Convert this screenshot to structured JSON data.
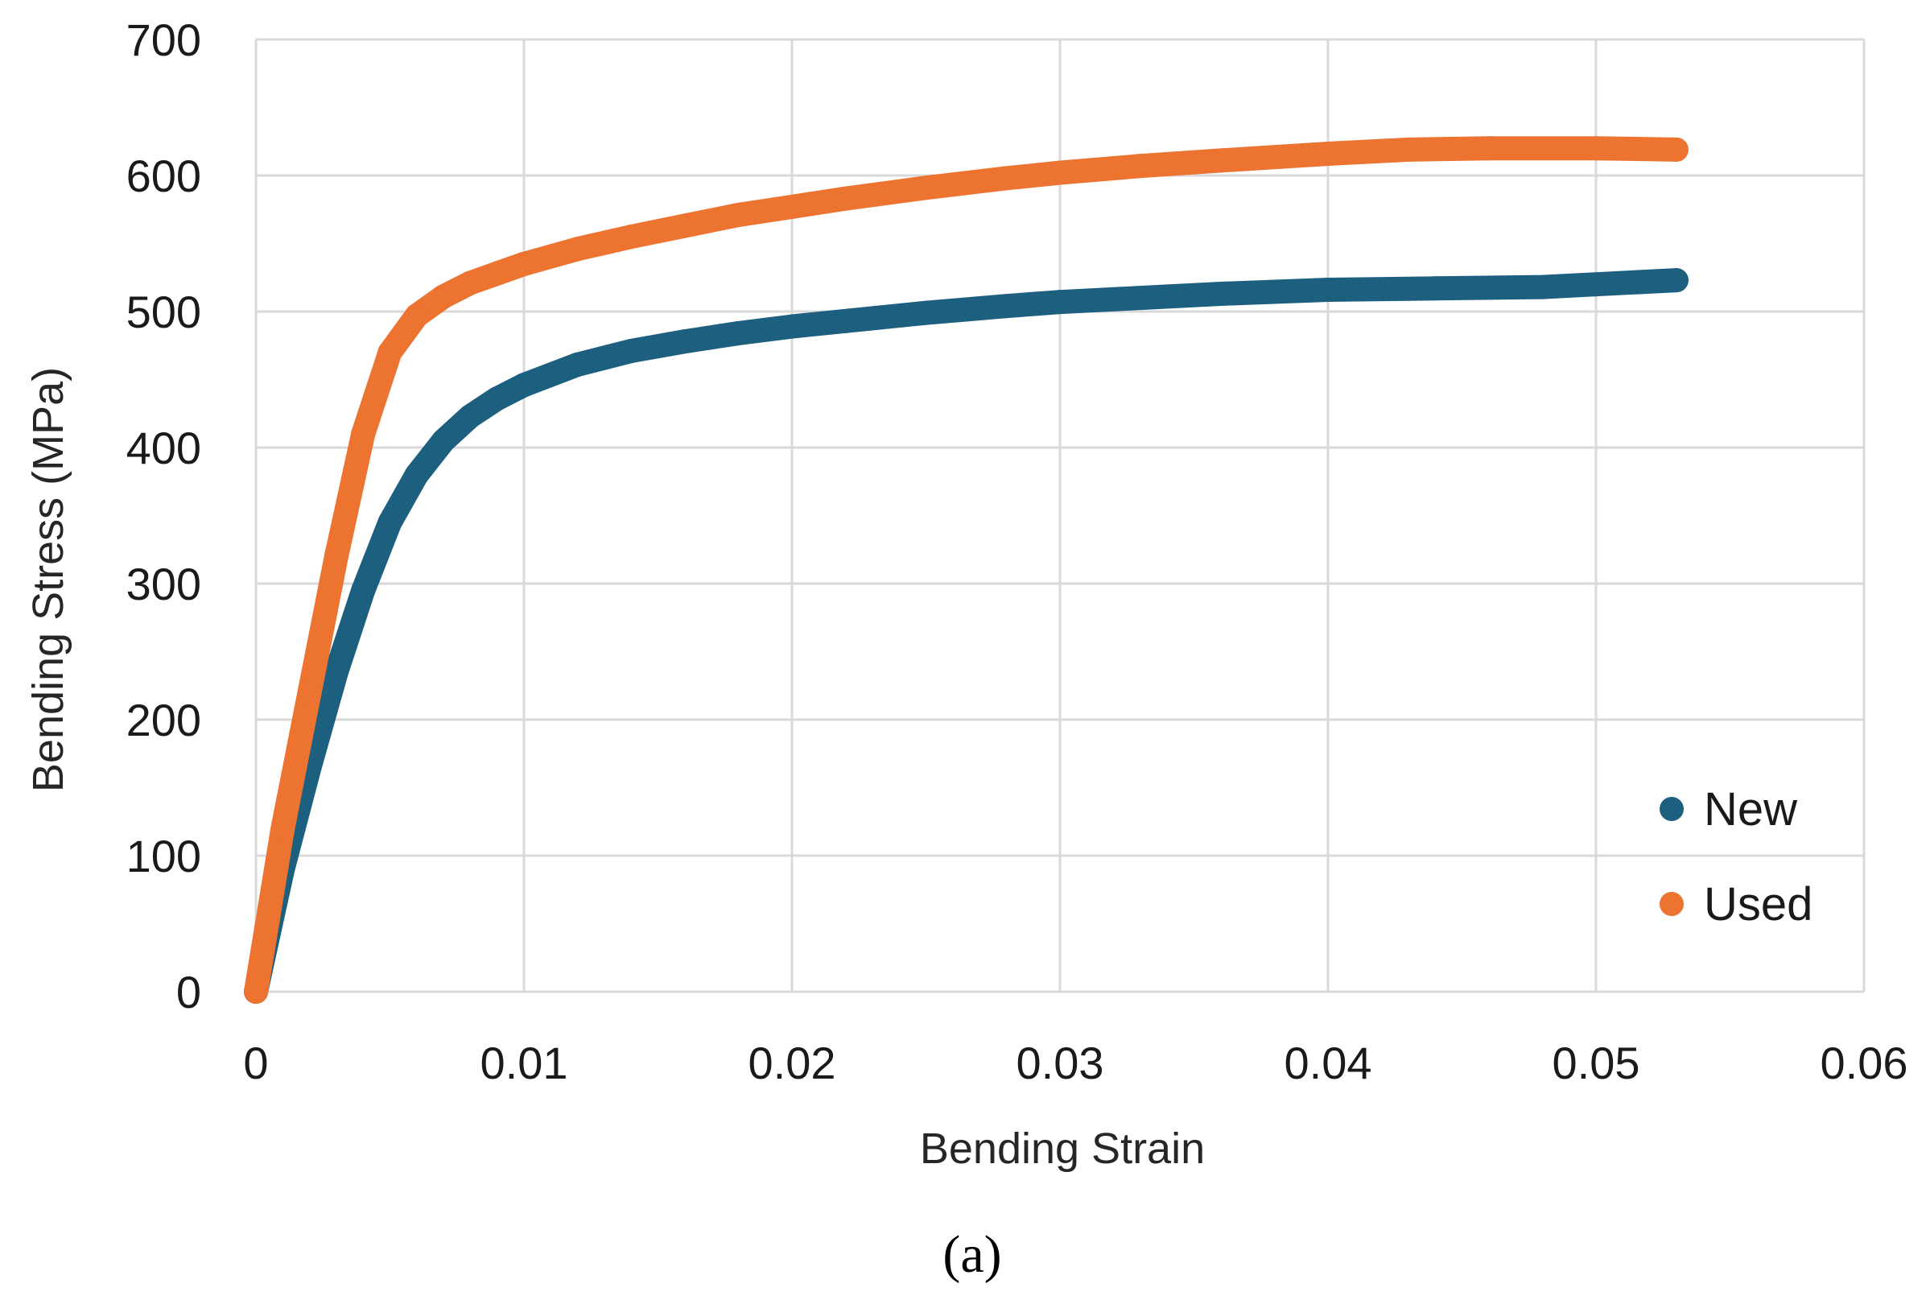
{
  "chart_data": {
    "type": "scatter",
    "xlabel": "Bending Strain",
    "ylabel": "Bending Stress (MPa)",
    "xlim": [
      0,
      0.06
    ],
    "ylim": [
      0,
      700
    ],
    "x_ticks": [
      "0",
      "0.01",
      "0.02",
      "0.03",
      "0.04",
      "0.05",
      "0.06"
    ],
    "y_ticks": [
      "0",
      "100",
      "200",
      "300",
      "400",
      "500",
      "600",
      "700"
    ],
    "x_tick_values": [
      0,
      0.01,
      0.02,
      0.03,
      0.04,
      0.05,
      0.06
    ],
    "y_tick_values": [
      0,
      100,
      200,
      300,
      400,
      500,
      600,
      700
    ],
    "grid": true,
    "legend_position": "bottom-right",
    "caption": "(a)",
    "series": [
      {
        "name": "New",
        "color": "#1c5f7f",
        "points": [
          [
            0,
            0
          ],
          [
            0.001,
            90
          ],
          [
            0.002,
            165
          ],
          [
            0.003,
            235
          ],
          [
            0.004,
            295
          ],
          [
            0.005,
            345
          ],
          [
            0.006,
            380
          ],
          [
            0.007,
            405
          ],
          [
            0.008,
            423
          ],
          [
            0.009,
            436
          ],
          [
            0.01,
            446
          ],
          [
            0.012,
            461
          ],
          [
            0.014,
            471
          ],
          [
            0.016,
            478
          ],
          [
            0.018,
            484
          ],
          [
            0.02,
            489
          ],
          [
            0.022,
            493
          ],
          [
            0.025,
            499
          ],
          [
            0.028,
            504
          ],
          [
            0.03,
            507
          ],
          [
            0.033,
            510
          ],
          [
            0.036,
            513
          ],
          [
            0.04,
            516
          ],
          [
            0.044,
            517
          ],
          [
            0.048,
            518
          ],
          [
            0.05,
            520
          ],
          [
            0.053,
            523
          ]
        ]
      },
      {
        "name": "Used",
        "color": "#ed7330",
        "points": [
          [
            0,
            0
          ],
          [
            0.001,
            120
          ],
          [
            0.002,
            220
          ],
          [
            0.003,
            320
          ],
          [
            0.004,
            410
          ],
          [
            0.005,
            470
          ],
          [
            0.006,
            497
          ],
          [
            0.007,
            511
          ],
          [
            0.008,
            521
          ],
          [
            0.009,
            528
          ],
          [
            0.01,
            535
          ],
          [
            0.012,
            546
          ],
          [
            0.014,
            555
          ],
          [
            0.016,
            563
          ],
          [
            0.018,
            571
          ],
          [
            0.02,
            577
          ],
          [
            0.022,
            583
          ],
          [
            0.025,
            591
          ],
          [
            0.028,
            598
          ],
          [
            0.03,
            602
          ],
          [
            0.033,
            607
          ],
          [
            0.036,
            611
          ],
          [
            0.04,
            616
          ],
          [
            0.043,
            619
          ],
          [
            0.046,
            620
          ],
          [
            0.05,
            620
          ],
          [
            0.053,
            619
          ]
        ]
      }
    ]
  }
}
